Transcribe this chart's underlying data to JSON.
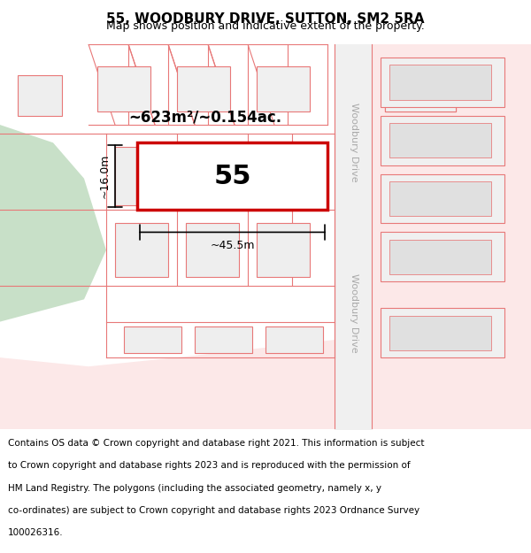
{
  "title": "55, WOODBURY DRIVE, SUTTON, SM2 5RA",
  "subtitle": "Map shows position and indicative extent of the property.",
  "footer": "Contains OS data © Crown copyright and database right 2021. This information is subject to Crown copyright and database rights 2023 and is reproduced with the permission of HM Land Registry. The polygons (including the associated geometry, namely x, y co-ordinates) are subject to Crown copyright and database rights 2023 Ordnance Survey 100026316.",
  "area_label": "~623m²/~0.154ac.",
  "number_label": "55",
  "width_label": "~45.5m",
  "height_label": "~16.0m",
  "bg_color": "#ffffff",
  "map_bg": "#ffffff",
  "green_area_color": "#c8e0c8",
  "pink_area_color": "#f8dada",
  "property_fill": "#ffffff",
  "property_edge": "#cc0000",
  "cadastral_line_color": "#e87878",
  "road_line_color": "#e87878",
  "title_fontsize": 11,
  "subtitle_fontsize": 9,
  "footer_fontsize": 7.5,
  "woodbury_drive_label": "Woodbury Drive"
}
